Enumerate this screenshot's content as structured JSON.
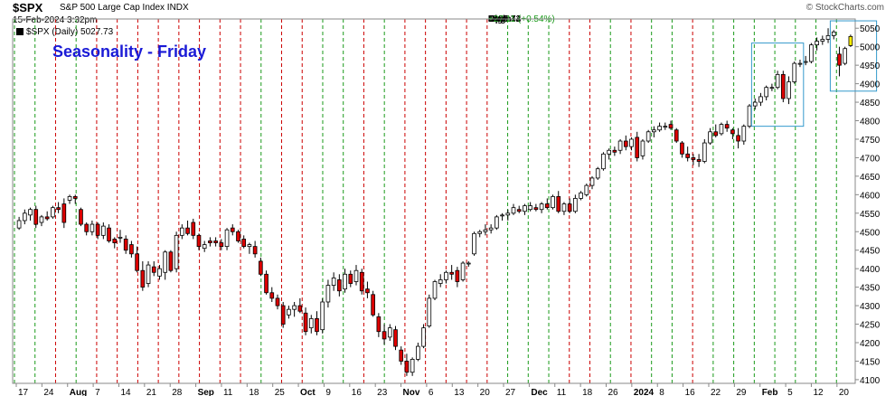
{
  "header": {
    "symbol": "$SPX",
    "name": "S&P 500 Large Cap Index  INDX",
    "date": "15-Feb-2024 3:32pm",
    "open_label": "Open",
    "open": "5003.14",
    "high_label": "High",
    "high": "5032.72",
    "low_label": "Low",
    "low": "4999.44",
    "last_label": "Last",
    "last": "5027.73",
    "chg_label": "Chg",
    "chg": "+27.11 (+0.54%)",
    "copyright": "© StockCharts.com",
    "legend": "$SPX (Daily) 5027.73"
  },
  "colors": {
    "up": "#ffffff",
    "down": "#dd0000",
    "wick": "#000000",
    "green_line": "#1a9a1a",
    "red_line": "#cc0000",
    "highlight": "#3399cc",
    "latest": "#ffee00",
    "title": "#1a1ad6"
  },
  "chart_data": {
    "type": "candlestick",
    "title": "Seasonality - Friday",
    "ylim": [
      4090,
      5075
    ],
    "y_ticks": [
      4100,
      4150,
      4200,
      4250,
      4300,
      4350,
      4400,
      4450,
      4500,
      4550,
      4600,
      4650,
      4700,
      4750,
      4800,
      4850,
      4900,
      4950,
      5000,
      5050
    ],
    "x_labels": [
      {
        "label": "17",
        "bold": false
      },
      {
        "label": "24",
        "bold": false
      },
      {
        "label": "Aug",
        "bold": true
      },
      {
        "label": "7",
        "bold": false
      },
      {
        "label": "14",
        "bold": false
      },
      {
        "label": "21",
        "bold": false
      },
      {
        "label": "28",
        "bold": false
      },
      {
        "label": "Sep",
        "bold": true
      },
      {
        "label": "11",
        "bold": false
      },
      {
        "label": "18",
        "bold": false
      },
      {
        "label": "25",
        "bold": false
      },
      {
        "label": "Oct",
        "bold": true
      },
      {
        "label": "9",
        "bold": false
      },
      {
        "label": "16",
        "bold": false
      },
      {
        "label": "23",
        "bold": false
      },
      {
        "label": "Nov",
        "bold": true
      },
      {
        "label": "6",
        "bold": false
      },
      {
        "label": "13",
        "bold": false
      },
      {
        "label": "20",
        "bold": false
      },
      {
        "label": "27",
        "bold": false
      },
      {
        "label": "Dec",
        "bold": true
      },
      {
        "label": "11",
        "bold": false
      },
      {
        "label": "18",
        "bold": false
      },
      {
        "label": "26",
        "bold": false
      },
      {
        "label": "2024",
        "bold": true
      },
      {
        "label": "8",
        "bold": false
      },
      {
        "label": "16",
        "bold": false
      },
      {
        "label": "22",
        "bold": false
      },
      {
        "label": "29",
        "bold": false
      },
      {
        "label": "Feb",
        "bold": true
      },
      {
        "label": "5",
        "bold": false
      },
      {
        "label": "12",
        "bold": false
      },
      {
        "label": "20",
        "bold": false
      }
    ],
    "candles": [
      [
        4510,
        4540,
        4505,
        4530
      ],
      [
        4530,
        4560,
        4520,
        4550
      ],
      [
        4545,
        4565,
        4530,
        4560
      ],
      [
        4560,
        4570,
        4510,
        4520
      ],
      [
        4525,
        4545,
        4515,
        4540
      ],
      [
        4540,
        4555,
        4530,
        4535
      ],
      [
        4540,
        4570,
        4535,
        4565
      ],
      [
        4565,
        4580,
        4550,
        4560
      ],
      [
        4575,
        4590,
        4510,
        4525
      ],
      [
        4585,
        4600,
        4575,
        4595
      ],
      [
        4595,
        4600,
        4575,
        4590
      ],
      [
        4560,
        4565,
        4515,
        4520
      ],
      [
        4520,
        4525,
        4490,
        4500
      ],
      [
        4500,
        4530,
        4490,
        4520
      ],
      [
        4520,
        4525,
        4480,
        4490
      ],
      [
        4490,
        4525,
        4480,
        4515
      ],
      [
        4510,
        4520,
        4470,
        4475
      ],
      [
        4480,
        4485,
        4455,
        4470
      ],
      [
        4485,
        4505,
        4470,
        4485
      ],
      [
        4480,
        4490,
        4440,
        4450
      ],
      [
        4465,
        4475,
        4430,
        4440
      ],
      [
        4440,
        4460,
        4390,
        4395
      ],
      [
        4395,
        4420,
        4340,
        4350
      ],
      [
        4360,
        4420,
        4350,
        4410
      ],
      [
        4405,
        4420,
        4380,
        4390
      ],
      [
        4380,
        4410,
        4370,
        4400
      ],
      [
        4390,
        4450,
        4370,
        4445
      ],
      [
        4445,
        4450,
        4390,
        4395
      ],
      [
        4400,
        4500,
        4390,
        4490
      ],
      [
        4490,
        4520,
        4480,
        4510
      ],
      [
        4510,
        4530,
        4490,
        4495
      ],
      [
        4525,
        4535,
        4480,
        4490
      ],
      [
        4490,
        4495,
        4450,
        4460
      ],
      [
        4455,
        4475,
        4445,
        4465
      ],
      [
        4475,
        4485,
        4460,
        4470
      ],
      [
        4475,
        4485,
        4460,
        4470
      ],
      [
        4470,
        4480,
        4450,
        4460
      ],
      [
        4460,
        4510,
        4450,
        4505
      ],
      [
        4510,
        4520,
        4490,
        4500
      ],
      [
        4500,
        4505,
        4470,
        4475
      ],
      [
        4480,
        4490,
        4455,
        4460
      ],
      [
        4460,
        4470,
        4440,
        4465
      ],
      [
        4460,
        4475,
        4430,
        4440
      ],
      [
        4420,
        4430,
        4380,
        4385
      ],
      [
        4385,
        4395,
        4330,
        4335
      ],
      [
        4335,
        4350,
        4310,
        4320
      ],
      [
        4320,
        4330,
        4290,
        4300
      ],
      [
        4300,
        4310,
        4240,
        4250
      ],
      [
        4275,
        4300,
        4265,
        4290
      ],
      [
        4290,
        4310,
        4270,
        4300
      ],
      [
        4300,
        4320,
        4280,
        4285
      ],
      [
        4280,
        4295,
        4220,
        4230
      ],
      [
        4240,
        4275,
        4225,
        4265
      ],
      [
        4265,
        4285,
        4220,
        4230
      ],
      [
        4235,
        4320,
        4225,
        4310
      ],
      [
        4310,
        4370,
        4295,
        4355
      ],
      [
        4355,
        4390,
        4340,
        4375
      ],
      [
        4370,
        4385,
        4325,
        4340
      ],
      [
        4345,
        4400,
        4335,
        4385
      ],
      [
        4385,
        4395,
        4350,
        4360
      ],
      [
        4365,
        4410,
        4355,
        4395
      ],
      [
        4390,
        4400,
        4330,
        4340
      ],
      [
        4345,
        4365,
        4320,
        4335
      ],
      [
        4330,
        4340,
        4270,
        4275
      ],
      [
        4270,
        4280,
        4215,
        4230
      ],
      [
        4230,
        4250,
        4195,
        4210
      ],
      [
        4215,
        4250,
        4205,
        4240
      ],
      [
        4235,
        4245,
        4180,
        4190
      ],
      [
        4180,
        4190,
        4140,
        4150
      ],
      [
        4150,
        4170,
        4110,
        4120
      ],
      [
        4120,
        4160,
        4110,
        4155
      ],
      [
        4155,
        4200,
        4150,
        4190
      ],
      [
        4190,
        4250,
        4185,
        4240
      ],
      [
        4245,
        4330,
        4240,
        4320
      ],
      [
        4320,
        4370,
        4315,
        4365
      ],
      [
        4360,
        4385,
        4350,
        4370
      ],
      [
        4370,
        4395,
        4360,
        4390
      ],
      [
        4390,
        4410,
        4370,
        4385
      ],
      [
        4395,
        4405,
        4350,
        4365
      ],
      [
        4370,
        4420,
        4365,
        4415
      ],
      [
        4415,
        4420,
        4405,
        4415
      ],
      [
        4440,
        4500,
        4435,
        4495
      ],
      [
        4495,
        4505,
        4485,
        4500
      ],
      [
        4500,
        4520,
        4490,
        4505
      ],
      [
        4505,
        4520,
        4495,
        4510
      ],
      [
        4510,
        4545,
        4505,
        4540
      ],
      [
        4545,
        4550,
        4530,
        4545
      ],
      [
        4545,
        4560,
        4530,
        4550
      ],
      [
        4550,
        4575,
        4545,
        4565
      ],
      [
        4560,
        4570,
        4550,
        4555
      ],
      [
        4555,
        4575,
        4545,
        4570
      ],
      [
        4560,
        4580,
        4555,
        4570
      ],
      [
        4565,
        4575,
        4555,
        4560
      ],
      [
        4560,
        4580,
        4550,
        4575
      ],
      [
        4575,
        4590,
        4560,
        4565
      ],
      [
        4565,
        4600,
        4560,
        4595
      ],
      [
        4595,
        4610,
        4550,
        4555
      ],
      [
        4555,
        4580,
        4545,
        4575
      ],
      [
        4575,
        4590,
        4550,
        4555
      ],
      [
        4555,
        4600,
        4550,
        4590
      ],
      [
        4590,
        4610,
        4585,
        4605
      ],
      [
        4600,
        4630,
        4595,
        4625
      ],
      [
        4625,
        4650,
        4615,
        4645
      ],
      [
        4645,
        4675,
        4640,
        4670
      ],
      [
        4670,
        4715,
        4665,
        4710
      ],
      [
        4710,
        4725,
        4695,
        4720
      ],
      [
        4720,
        4730,
        4705,
        4715
      ],
      [
        4720,
        4750,
        4710,
        4745
      ],
      [
        4745,
        4760,
        4720,
        4730
      ],
      [
        4730,
        4755,
        4720,
        4750
      ],
      [
        4755,
        4770,
        4690,
        4700
      ],
      [
        4705,
        4750,
        4695,
        4745
      ],
      [
        4745,
        4775,
        4740,
        4770
      ],
      [
        4770,
        4785,
        4755,
        4775
      ],
      [
        4775,
        4795,
        4770,
        4785
      ],
      [
        4785,
        4795,
        4775,
        4785
      ],
      [
        4790,
        4800,
        4775,
        4780
      ],
      [
        4775,
        4780,
        4740,
        4745
      ],
      [
        4740,
        4745,
        4700,
        4710
      ],
      [
        4710,
        4730,
        4690,
        4700
      ],
      [
        4700,
        4710,
        4680,
        4695
      ],
      [
        4695,
        4710,
        4675,
        4690
      ],
      [
        4690,
        4750,
        4685,
        4740
      ],
      [
        4740,
        4780,
        4735,
        4770
      ],
      [
        4770,
        4790,
        4755,
        4760
      ],
      [
        4765,
        4795,
        4760,
        4790
      ],
      [
        4790,
        4800,
        4770,
        4780
      ],
      [
        4775,
        4780,
        4750,
        4765
      ],
      [
        4760,
        4780,
        4725,
        4745
      ],
      [
        4745,
        4790,
        4735,
        4785
      ],
      [
        4785,
        4845,
        4780,
        4840
      ],
      [
        4840,
        4860,
        4830,
        4850
      ],
      [
        4850,
        4875,
        4840,
        4865
      ],
      [
        4865,
        4895,
        4855,
        4890
      ],
      [
        4890,
        4900,
        4880,
        4890
      ],
      [
        4890,
        4935,
        4885,
        4925
      ],
      [
        4925,
        4935,
        4850,
        4860
      ],
      [
        4860,
        4920,
        4845,
        4905
      ],
      [
        4905,
        4960,
        4900,
        4955
      ],
      [
        4955,
        4965,
        4945,
        4955
      ],
      [
        4960,
        4975,
        4950,
        4960
      ],
      [
        4960,
        5010,
        4955,
        5005
      ],
      [
        5005,
        5025,
        4990,
        5015
      ],
      [
        5015,
        5030,
        5005,
        5020
      ],
      [
        5020,
        5050,
        5010,
        5030
      ],
      [
        5030,
        5045,
        5020,
        5040
      ],
      [
        4980,
        5000,
        4920,
        4950
      ],
      [
        4955,
        5000,
        4950,
        4995
      ],
      [
        5003.14,
        5032.72,
        4999.44,
        5027.73
      ]
    ],
    "week_markers": [
      "green",
      "green",
      "red",
      "green",
      "red",
      "red",
      "red",
      "red",
      "red",
      "red",
      "red",
      "red",
      "green",
      "red",
      "red",
      "green",
      "green",
      "red",
      "green",
      "red",
      "red",
      "red",
      "red",
      "red",
      "green",
      "green",
      "green",
      "red",
      "red",
      "green",
      "red",
      "green",
      "green",
      "red",
      "green",
      "green",
      "green",
      "green",
      "green",
      "green",
      "green"
    ],
    "highlight_boxes": [
      {
        "x_from": 131,
        "x_to": 139,
        "y_from": 4785,
        "y_to": 5010
      },
      {
        "x_from": 145,
        "x_to": 152,
        "y_from": 4880,
        "y_to": 5070
      }
    ]
  }
}
